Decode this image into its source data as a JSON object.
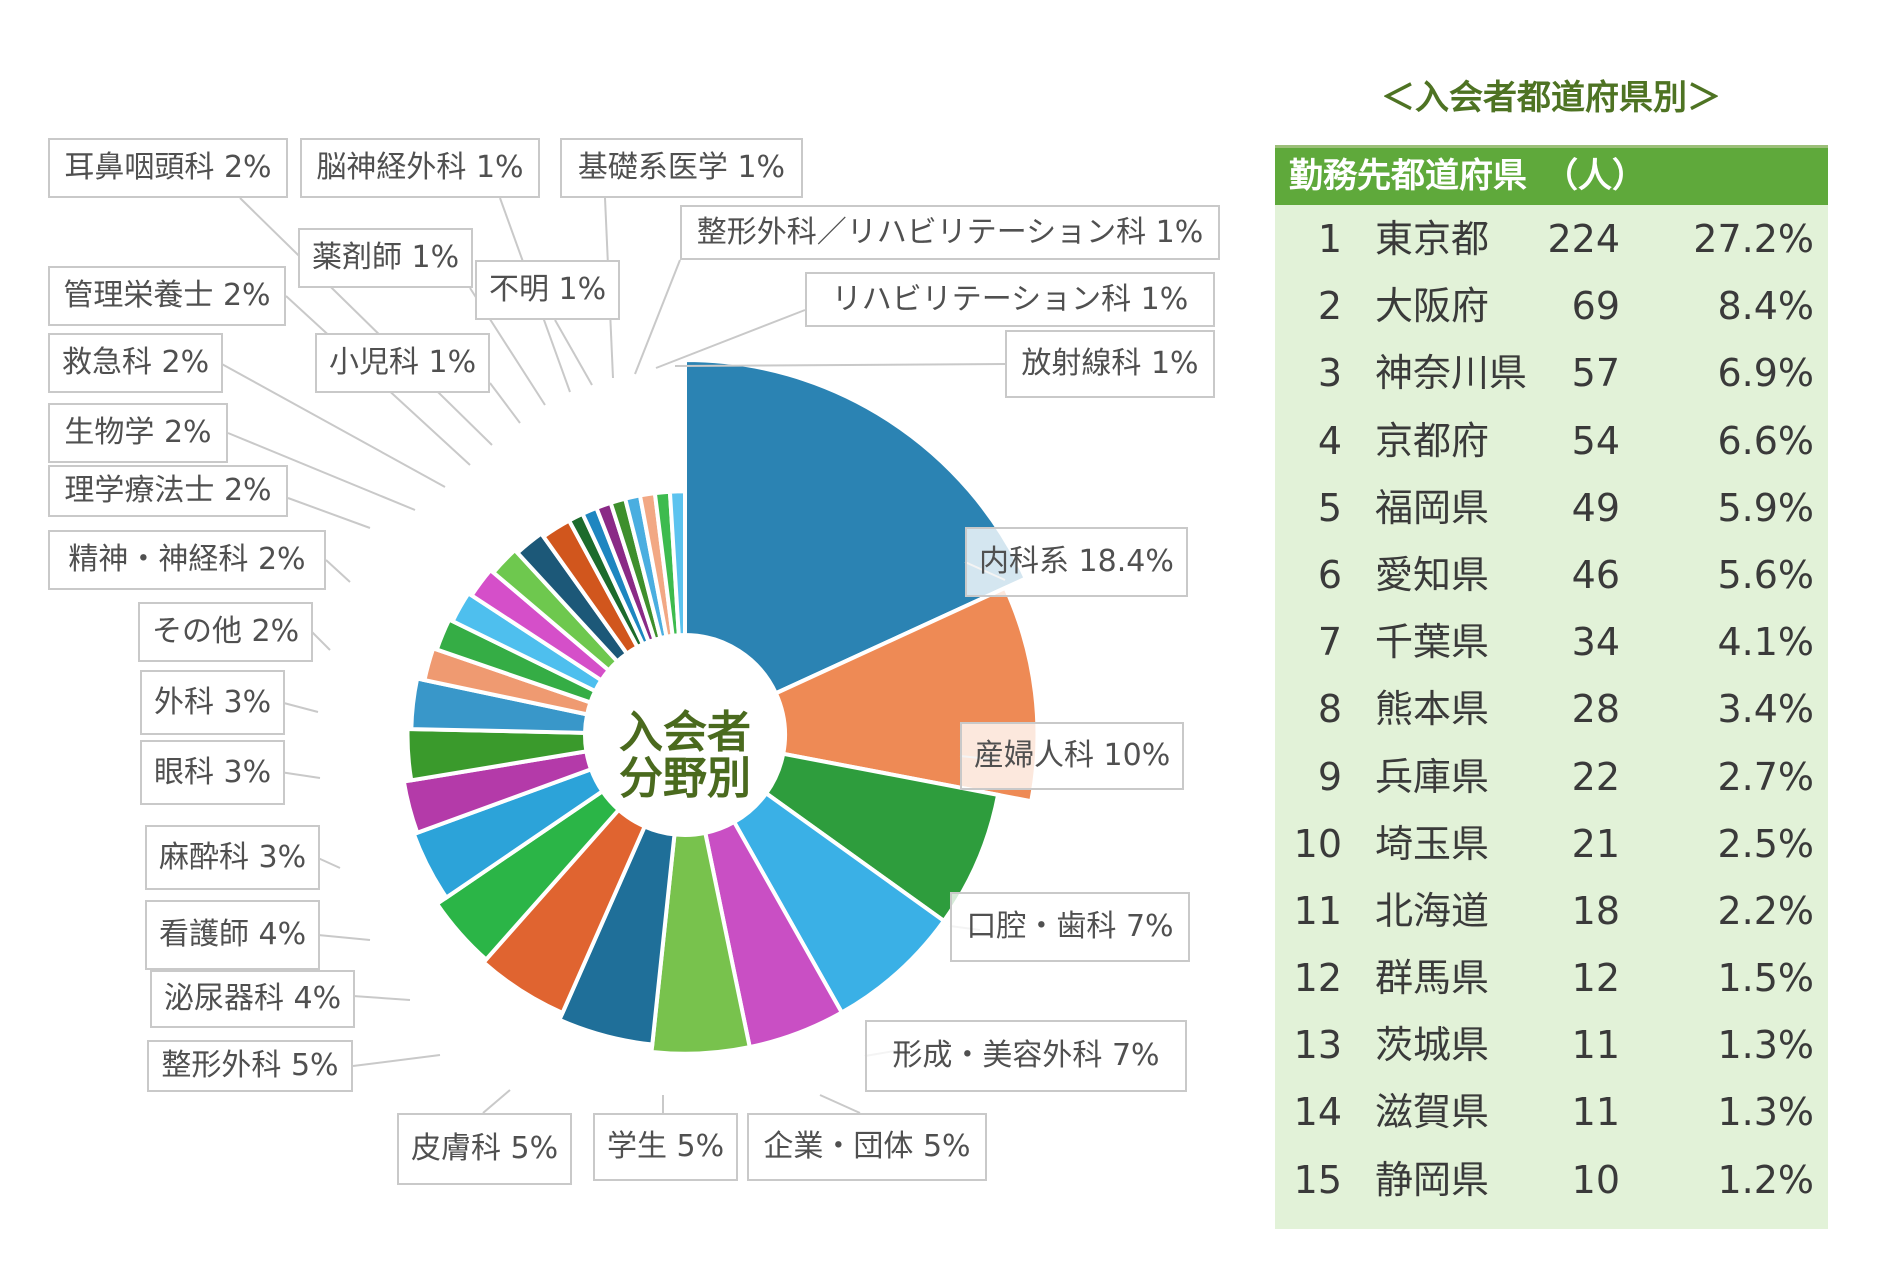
{
  "colors": {
    "table_header_bg": "#5fa93b",
    "table_body_bg": "#e2f2d8",
    "title_color": "#4e7323",
    "center_text_color": "#4a6a1e"
  },
  "chart_data": [
    {
      "type": "pie",
      "variant": "donut",
      "center_label_lines": [
        "入会者",
        "分野別"
      ],
      "slices": [
        {
          "label": "内科系 18.4%",
          "value": 18.4,
          "color": "#2b83b3"
        },
        {
          "label": "産婦人科 10%",
          "value": 10,
          "color": "#ee8a55"
        },
        {
          "label": "口腔・歯科 7%",
          "value": 7,
          "color": "#2e9d3d"
        },
        {
          "label": "形成・美容外科 7%",
          "value": 7,
          "color": "#3ab0e6"
        },
        {
          "label": "企業・団体 5%",
          "value": 5,
          "color": "#c94fc4"
        },
        {
          "label": "学生 5%",
          "value": 5,
          "color": "#78c24d"
        },
        {
          "label": "皮膚科 5%",
          "value": 5,
          "color": "#1f6f99"
        },
        {
          "label": "整形外科 5%",
          "value": 5,
          "color": "#e06430"
        },
        {
          "label": "泌尿器科 4%",
          "value": 4,
          "color": "#2bb547"
        },
        {
          "label": "看護師 4%",
          "value": 4,
          "color": "#2ca3d9"
        },
        {
          "label": "麻酔科 3%",
          "value": 3,
          "color": "#b43aa9"
        },
        {
          "label": "眼科 3%",
          "value": 3,
          "color": "#3a9a2c"
        },
        {
          "label": "外科 3%",
          "value": 3,
          "color": "#3997c9"
        },
        {
          "label": "その他 2%",
          "value": 2,
          "color": "#ef9a71"
        },
        {
          "label": "精神・神経科 2%",
          "value": 2,
          "color": "#35ad45"
        },
        {
          "label": "理学療法士 2%",
          "value": 2,
          "color": "#4ebfee"
        },
        {
          "label": "生物学 2%",
          "value": 2,
          "color": "#d54fc9"
        },
        {
          "label": "救急科 2%",
          "value": 2,
          "color": "#6ec84e"
        },
        {
          "label": "管理栄養士 2%",
          "value": 2,
          "color": "#1c5878"
        },
        {
          "label": "耳鼻咽頭科 2%",
          "value": 2,
          "color": "#d1561d"
        },
        {
          "label": "小児科 1%",
          "value": 1,
          "color": "#1c6b2c"
        },
        {
          "label": "薬剤師 1%",
          "value": 1,
          "color": "#1e86c0"
        },
        {
          "label": "脳神経外科 1%",
          "value": 1,
          "color": "#8a2a86"
        },
        {
          "label": "不明 1%",
          "value": 1,
          "color": "#3e8f2c"
        },
        {
          "label": "基礎系医学 1%",
          "value": 1,
          "color": "#4aaee0"
        },
        {
          "label": "整形外科／リハビリテーション科 1%",
          "value": 1,
          "color": "#f2a884"
        },
        {
          "label": "リハビリテーション科 1%",
          "value": 1,
          "color": "#3dbb4e"
        },
        {
          "label": "放射線科 1%",
          "value": 1,
          "color": "#5cc3ef"
        }
      ]
    },
    {
      "type": "table",
      "title": "＜入会者都道府県別＞",
      "header": "勤務先都道府県　（人）",
      "columns": [
        "rank",
        "prefecture",
        "count",
        "percent"
      ],
      "rows": [
        {
          "rank": "1",
          "prefecture": "東京都",
          "count": "224",
          "percent": "27.2%"
        },
        {
          "rank": "2",
          "prefecture": "大阪府",
          "count": "69",
          "percent": "8.4%"
        },
        {
          "rank": "3",
          "prefecture": "神奈川県",
          "count": "57",
          "percent": "6.9%"
        },
        {
          "rank": "4",
          "prefecture": "京都府",
          "count": "54",
          "percent": "6.6%"
        },
        {
          "rank": "5",
          "prefecture": "福岡県",
          "count": "49",
          "percent": "5.9%"
        },
        {
          "rank": "6",
          "prefecture": "愛知県",
          "count": "46",
          "percent": "5.6%"
        },
        {
          "rank": "7",
          "prefecture": "千葉県",
          "count": "34",
          "percent": "4.1%"
        },
        {
          "rank": "8",
          "prefecture": "熊本県",
          "count": "28",
          "percent": "3.4%"
        },
        {
          "rank": "9",
          "prefecture": "兵庫県",
          "count": "22",
          "percent": "2.7%"
        },
        {
          "rank": "10",
          "prefecture": "埼玉県",
          "count": "21",
          "percent": "2.5%"
        },
        {
          "rank": "11",
          "prefecture": "北海道",
          "count": "18",
          "percent": "2.2%"
        },
        {
          "rank": "12",
          "prefecture": "群馬県",
          "count": "12",
          "percent": "1.5%"
        },
        {
          "rank": "13",
          "prefecture": "茨城県",
          "count": "11",
          "percent": "1.3%"
        },
        {
          "rank": "14",
          "prefecture": "滋賀県",
          "count": "11",
          "percent": "1.3%"
        },
        {
          "rank": "15",
          "prefecture": "静岡県",
          "count": "10",
          "percent": "1.2%"
        }
      ]
    }
  ]
}
